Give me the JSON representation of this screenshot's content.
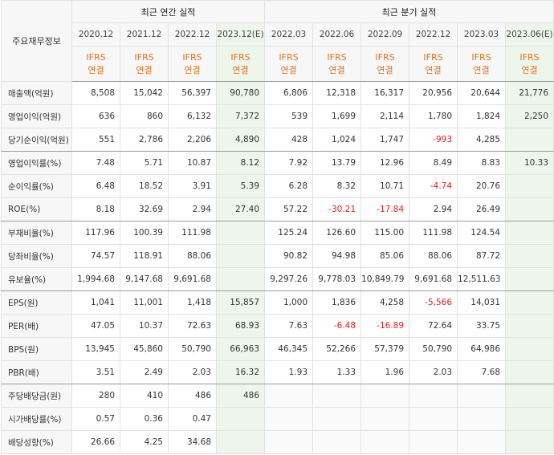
{
  "header": {
    "title": "주요재무정보",
    "groups": [
      "최근 연간 실적",
      "최근 분기 실적"
    ],
    "columns": [
      {
        "period": "2020.12",
        "standard": "IFRS",
        "basis": "연결"
      },
      {
        "period": "2021.12",
        "standard": "IFRS",
        "basis": "연결"
      },
      {
        "period": "2022.12",
        "standard": "IFRS",
        "basis": "연결"
      },
      {
        "period": "2023.12(E)",
        "standard": "IFRS",
        "basis": "연결"
      },
      {
        "period": "2022.03",
        "standard": "IFRS",
        "basis": "연결"
      },
      {
        "period": "2022.06",
        "standard": "IFRS",
        "basis": "연결"
      },
      {
        "period": "2022.09",
        "standard": "IFRS",
        "basis": "연결"
      },
      {
        "period": "2022.12",
        "standard": "IFRS",
        "basis": "연결"
      },
      {
        "period": "2023.03",
        "standard": "IFRS",
        "basis": "연결"
      },
      {
        "period": "2023.06(E)",
        "standard": "IFRS",
        "basis": "연결"
      }
    ]
  },
  "table": {
    "rows": [
      {
        "name": "매출액(억원)",
        "values": [
          "8,508",
          "15,042",
          "56,397",
          "90,780",
          "6,806",
          "12,318",
          "16,317",
          "20,956",
          "20,644",
          "21,776"
        ]
      },
      {
        "name": "영업이익(억원)",
        "values": [
          "636",
          "860",
          "6,132",
          "7,372",
          "539",
          "1,699",
          "2,114",
          "1,780",
          "1,824",
          "2,250"
        ]
      },
      {
        "name": "당기순이익(억원)",
        "values": [
          "551",
          "2,786",
          "2,206",
          "4,890",
          "428",
          "1,024",
          "1,747",
          "-993",
          "4,285",
          null
        ]
      },
      {
        "name": "영업이익률(%)",
        "values": [
          "7.48",
          "5.71",
          "10.87",
          "8.12",
          "7.92",
          "13.79",
          "12.96",
          "8.49",
          "8.83",
          "10.33"
        ]
      },
      {
        "name": "순이익률(%)",
        "values": [
          "6.48",
          "18.52",
          "3.91",
          "5.39",
          "6.28",
          "8.32",
          "10.71",
          "-4.74",
          "20.76",
          null
        ]
      },
      {
        "name": "ROE(%)",
        "values": [
          "8.18",
          "32.69",
          "2.94",
          "27.40",
          "57.22",
          "-30.21",
          "-17.84",
          "2.94",
          "26.49",
          null
        ]
      },
      {
        "name": "부채비율(%)",
        "values": [
          "117.96",
          "100.39",
          "111.98",
          null,
          "125.24",
          "126.60",
          "115.00",
          "111.98",
          "124.54",
          null
        ]
      },
      {
        "name": "당좌비율(%)",
        "values": [
          "74.57",
          "118.91",
          "88.06",
          null,
          "90.82",
          "94.98",
          "85.06",
          "88.06",
          "87.72",
          null
        ]
      },
      {
        "name": "유보율(%)",
        "values": [
          "1,994.68",
          "9,147.68",
          "9,691.68",
          null,
          "9,297.26",
          "9,778.03",
          "10,849.79",
          "9,691.68",
          "12,511.63",
          null
        ]
      },
      {
        "name": "EPS(원)",
        "values": [
          "1,041",
          "11,001",
          "1,418",
          "15,857",
          "1,000",
          "1,836",
          "4,258",
          "-5,566",
          "14,031",
          null
        ]
      },
      {
        "name": "PER(배)",
        "values": [
          "47.05",
          "10.37",
          "72.63",
          "68.93",
          "7.63",
          "-6.48",
          "-16.89",
          "72.64",
          "33.75",
          null
        ]
      },
      {
        "name": "BPS(원)",
        "values": [
          "13,945",
          "45,860",
          "50,790",
          "66,963",
          "46,345",
          "52,266",
          "57,379",
          "50,790",
          "64,986",
          null
        ]
      },
      {
        "name": "PBR(배)",
        "values": [
          "3.51",
          "2.49",
          "2.03",
          "16.32",
          "1.93",
          "1.33",
          "1.96",
          "2.03",
          "7.68",
          null
        ]
      },
      {
        "name": "주당배당금(원)",
        "values": [
          "280",
          "410",
          "486",
          "486",
          null,
          null,
          null,
          null,
          null,
          null
        ]
      },
      {
        "name": "시가배당률(%)",
        "values": [
          "0.57",
          "0.36",
          "0.47",
          null,
          null,
          null,
          null,
          null,
          null,
          null
        ]
      },
      {
        "name": "배당성향(%)",
        "values": [
          "26.66",
          "4.25",
          "34.68",
          null,
          null,
          null,
          null,
          null,
          null,
          null
        ]
      }
    ]
  }
}
